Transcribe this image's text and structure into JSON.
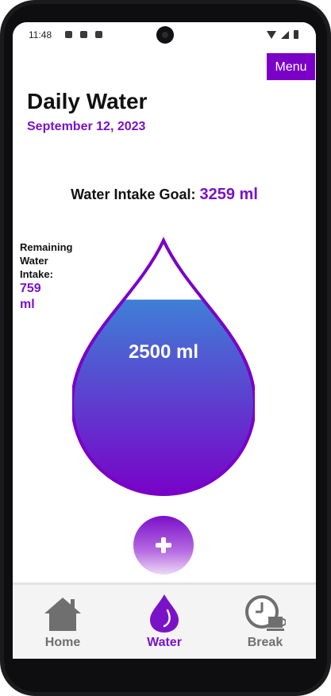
{
  "status": {
    "time": "11:48"
  },
  "header": {
    "menu_label": "Menu",
    "title": "Daily Water",
    "date": "September 12, 2023"
  },
  "goal": {
    "label": "Water Intake Goal:",
    "value": "3259 ml"
  },
  "remaining": {
    "label": "Remaining Water Intake:",
    "value": "759 ml"
  },
  "drop": {
    "amount": "2500 ml",
    "fill_fraction": 0.767
  },
  "nav": {
    "items": [
      {
        "label": "Home",
        "icon": "home-icon",
        "active": false
      },
      {
        "label": "Water",
        "icon": "water-drop-icon",
        "active": true
      },
      {
        "label": "Break",
        "icon": "clock-coffee-icon",
        "active": false
      }
    ]
  },
  "colors": {
    "accent": "#7a12c8",
    "water_top": "#3f7fd6",
    "water_bottom": "#7a00c8",
    "inactive": "#6f6f6f"
  }
}
